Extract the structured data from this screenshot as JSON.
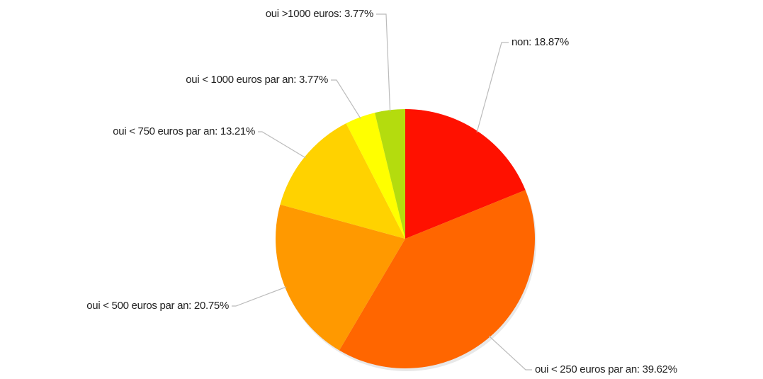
{
  "chart_data": {
    "type": "pie",
    "value_labels": [
      "non: 18.87%",
      "oui < 250 euros par an: 39.62%",
      "oui < 500 euros par an: 20.75%",
      "oui < 750 euros par an: 13.21%",
      "oui < 1000 euros par an: 3.77%",
      "oui >1000 euros: 3.77%"
    ],
    "values": [
      18.87,
      39.62,
      20.75,
      13.21,
      3.77,
      3.77
    ],
    "colors": [
      "#ff1100",
      "#ff6600",
      "#ff9900",
      "#ffd200",
      "#ffff00",
      "#b4dc0e"
    ]
  }
}
